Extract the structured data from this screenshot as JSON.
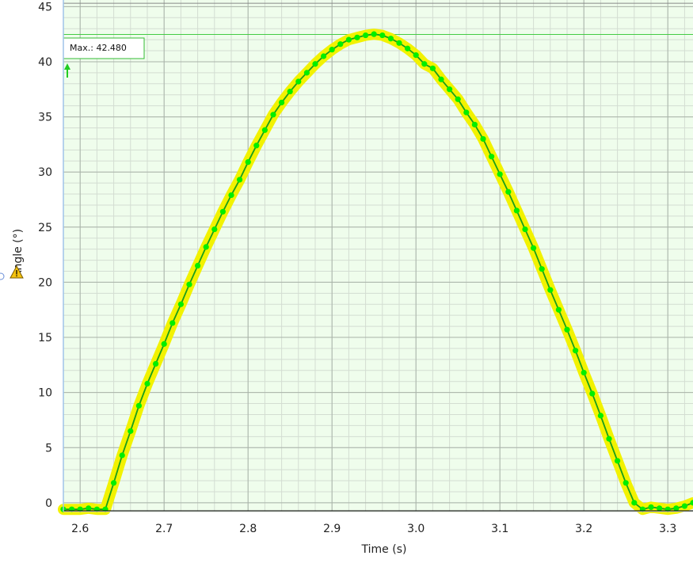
{
  "chart_data": {
    "type": "line",
    "xlabel": "Time (s)",
    "ylabel": "Angle (°)",
    "xlim": [
      2.58,
      3.33
    ],
    "ylim": [
      -0.8,
      45.6
    ],
    "x_ticks": [
      2.6,
      2.7,
      2.8,
      2.9,
      3.0,
      3.1,
      3.2,
      3.3
    ],
    "x_tick_labels": [
      "2.6",
      "2.7",
      "2.8",
      "2.9",
      "3.0",
      "3.1",
      "3.2",
      "3.3"
    ],
    "y_ticks": [
      0,
      5,
      10,
      15,
      20,
      25,
      30,
      35,
      40,
      45
    ],
    "y_tick_labels": [
      "0",
      "5",
      "10",
      "15",
      "20",
      "25",
      "30",
      "35",
      "40",
      "45"
    ],
    "grid": true,
    "max_annotation": {
      "label": "Max.: 42.480",
      "value": 42.48
    },
    "colors": {
      "plot_background": "#effdec",
      "grid_major": "#a9b3a9",
      "grid_minor": "#d3ddd2",
      "line": "#1a9e1a",
      "marker": "#00ee00",
      "highlight": "#f2f200",
      "baseline": "#000000",
      "max_line": "#44cc44",
      "max_box_border": "#33bb33"
    },
    "series": [
      {
        "x": [
          2.58,
          2.59,
          2.6,
          2.61,
          2.62,
          2.63,
          2.64,
          2.65,
          2.66,
          2.67,
          2.68,
          2.69,
          2.7,
          2.71,
          2.72,
          2.73,
          2.74,
          2.75,
          2.76,
          2.77,
          2.78,
          2.79,
          2.8,
          2.81,
          2.82,
          2.83,
          2.84,
          2.85,
          2.86,
          2.87,
          2.88,
          2.89,
          2.9,
          2.91,
          2.92,
          2.93,
          2.94,
          2.95,
          2.96,
          2.97,
          2.98,
          2.99,
          3.0,
          3.01,
          3.02,
          3.03,
          3.04,
          3.05,
          3.06,
          3.07,
          3.08,
          3.09,
          3.1,
          3.11,
          3.12,
          3.13,
          3.14,
          3.15,
          3.16,
          3.17,
          3.18,
          3.19,
          3.2,
          3.21,
          3.22,
          3.23,
          3.24,
          3.25,
          3.26,
          3.27,
          3.28,
          3.29,
          3.3,
          3.31,
          3.32,
          3.33
        ],
        "values": [
          -0.6,
          -0.6,
          -0.6,
          -0.5,
          -0.6,
          -0.6,
          1.8,
          4.3,
          6.5,
          8.8,
          10.8,
          12.6,
          14.4,
          16.3,
          18.0,
          19.8,
          21.5,
          23.2,
          24.8,
          26.4,
          27.9,
          29.3,
          30.9,
          32.4,
          33.8,
          35.2,
          36.3,
          37.3,
          38.2,
          39.0,
          39.8,
          40.5,
          41.1,
          41.6,
          42.0,
          42.2,
          42.4,
          42.5,
          42.4,
          42.1,
          41.7,
          41.2,
          40.6,
          39.8,
          39.4,
          38.4,
          37.5,
          36.6,
          35.4,
          34.3,
          33.0,
          31.4,
          29.8,
          28.2,
          26.5,
          24.8,
          23.1,
          21.2,
          19.3,
          17.5,
          15.7,
          13.8,
          11.8,
          9.9,
          7.9,
          5.8,
          3.8,
          1.8,
          0.0,
          -0.6,
          -0.4,
          -0.5,
          -0.6,
          -0.5,
          -0.3,
          0.0
        ]
      }
    ]
  }
}
